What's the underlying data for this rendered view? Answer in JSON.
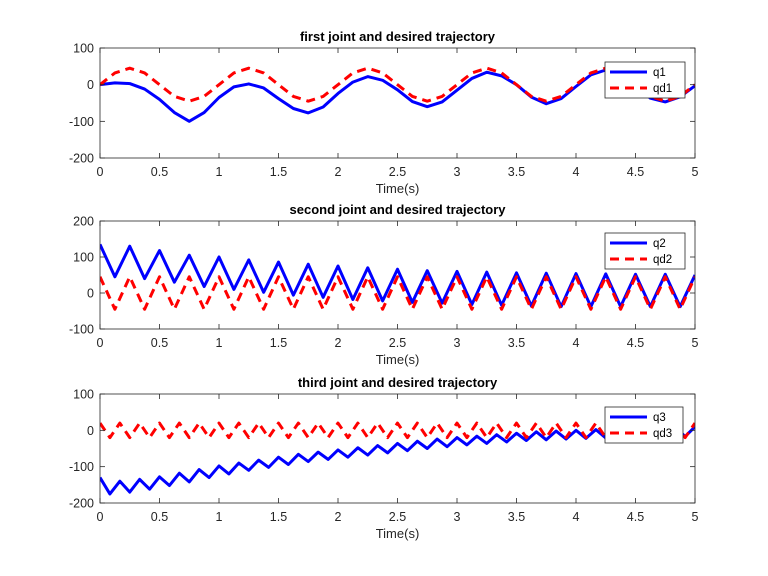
{
  "chart_data": [
    {
      "type": "line",
      "title": "first joint and desired trajectory",
      "xlabel": "Time(s)",
      "ylabel": "",
      "xlim": [
        0,
        5
      ],
      "ylim": [
        -200,
        100
      ],
      "xticks": [
        "0",
        "0.5",
        "1",
        "1.5",
        "2",
        "2.5",
        "3",
        "3.5",
        "4",
        "4.5",
        "5"
      ],
      "yticks": [
        "100",
        "0",
        "-100",
        "-200"
      ],
      "grid": false,
      "legend_position": "top-right",
      "series": [
        {
          "name": "q1",
          "color": "#0000ff",
          "style": "solid",
          "x": [
            0,
            0.125,
            0.25,
            0.375,
            0.5,
            0.625,
            0.75,
            0.875,
            1.0,
            1.125,
            1.25,
            1.375,
            1.5,
            1.625,
            1.75,
            1.875,
            2.0,
            2.125,
            2.25,
            2.375,
            2.5,
            2.625,
            2.75,
            2.875,
            3.0,
            3.125,
            3.25,
            3.375,
            3.5,
            3.625,
            3.75,
            3.875,
            4.0,
            4.125,
            4.25,
            4.375,
            4.5,
            4.625,
            4.75,
            4.875,
            5.0
          ],
          "y": [
            0,
            5,
            3,
            -12,
            -40,
            -76,
            -100,
            -76,
            -35,
            -6,
            2,
            -9,
            -38,
            -65,
            -77,
            -61,
            -24,
            7,
            22,
            12,
            -14,
            -46,
            -60,
            -47,
            -15,
            17,
            34,
            24,
            0,
            -34,
            -52,
            -38,
            -5,
            27,
            40,
            27,
            -2,
            -37,
            -47,
            -33,
            -3
          ]
        },
        {
          "name": "qd1",
          "color": "#ff0000",
          "style": "dashed",
          "x": [
            0,
            0.125,
            0.25,
            0.375,
            0.5,
            0.625,
            0.75,
            0.875,
            1.0,
            1.125,
            1.25,
            1.375,
            1.5,
            1.625,
            1.75,
            1.875,
            2.0,
            2.125,
            2.25,
            2.375,
            2.5,
            2.625,
            2.75,
            2.875,
            3.0,
            3.125,
            3.25,
            3.375,
            3.5,
            3.625,
            3.75,
            3.875,
            4.0,
            4.125,
            4.25,
            4.375,
            4.5,
            4.625,
            4.75,
            4.875,
            5.0
          ],
          "y": [
            0,
            32,
            45,
            32,
            0,
            -32,
            -45,
            -32,
            0,
            32,
            45,
            32,
            0,
            -32,
            -45,
            -32,
            0,
            32,
            45,
            32,
            0,
            -32,
            -45,
            -32,
            0,
            32,
            45,
            32,
            0,
            -32,
            -45,
            -32,
            0,
            32,
            45,
            32,
            0,
            -32,
            -45,
            -32,
            0
          ]
        }
      ]
    },
    {
      "type": "line",
      "title": "second joint and desired trajectory",
      "xlabel": "Time(s)",
      "ylabel": "",
      "xlim": [
        0,
        5
      ],
      "ylim": [
        -100,
        200
      ],
      "xticks": [
        "0",
        "0.5",
        "1",
        "1.5",
        "2",
        "2.5",
        "3",
        "3.5",
        "4",
        "4.5",
        "5"
      ],
      "yticks": [
        "200",
        "100",
        "0",
        "-100"
      ],
      "grid": false,
      "legend_position": "top-right",
      "series": [
        {
          "name": "q2",
          "color": "#0000ff",
          "style": "solid",
          "x": [
            0,
            0.125,
            0.25,
            0.375,
            0.5,
            0.625,
            0.75,
            0.875,
            1.0,
            1.125,
            1.25,
            1.375,
            1.5,
            1.625,
            1.75,
            1.875,
            2.0,
            2.125,
            2.25,
            2.375,
            2.5,
            2.625,
            2.75,
            2.875,
            3.0,
            3.125,
            3.25,
            3.375,
            3.5,
            3.625,
            3.75,
            3.875,
            4.0,
            4.125,
            4.25,
            4.375,
            4.5,
            4.625,
            4.75,
            4.875,
            5.0
          ],
          "y": [
            135,
            45,
            130,
            40,
            118,
            30,
            105,
            18,
            100,
            10,
            92,
            2,
            86,
            -6,
            80,
            -12,
            75,
            -18,
            70,
            -22,
            66,
            -26,
            62,
            -28,
            60,
            -32,
            58,
            -34,
            56,
            -36,
            55,
            -38,
            54,
            -38,
            53,
            -38,
            52,
            -38,
            52,
            -38,
            50
          ]
        },
        {
          "name": "qd2",
          "color": "#ff0000",
          "style": "dashed",
          "x": [
            0,
            0.125,
            0.25,
            0.375,
            0.5,
            0.625,
            0.75,
            0.875,
            1.0,
            1.125,
            1.25,
            1.375,
            1.5,
            1.625,
            1.75,
            1.875,
            2.0,
            2.125,
            2.25,
            2.375,
            2.5,
            2.625,
            2.75,
            2.875,
            3.0,
            3.125,
            3.25,
            3.375,
            3.5,
            3.625,
            3.75,
            3.875,
            4.0,
            4.125,
            4.25,
            4.375,
            4.5,
            4.625,
            4.75,
            4.875,
            5.0
          ],
          "y": [
            45,
            -45,
            45,
            -45,
            45,
            -45,
            45,
            -45,
            45,
            -45,
            45,
            -45,
            45,
            -45,
            45,
            -45,
            45,
            -45,
            45,
            -45,
            45,
            -45,
            45,
            -45,
            45,
            -45,
            45,
            -45,
            45,
            -45,
            45,
            -45,
            45,
            -45,
            45,
            -45,
            45,
            -45,
            45,
            -45,
            45
          ]
        }
      ]
    },
    {
      "type": "line",
      "title": "third joint and desired trajectory",
      "xlabel": "Time(s)",
      "ylabel": "",
      "xlim": [
        0,
        5
      ],
      "ylim": [
        -200,
        100
      ],
      "xticks": [
        "0",
        "0.5",
        "1",
        "1.5",
        "2",
        "2.5",
        "3",
        "3.5",
        "4",
        "4.5",
        "5"
      ],
      "yticks": [
        "100",
        "0",
        "-100",
        "-200"
      ],
      "grid": false,
      "legend_position": "top-right",
      "series": [
        {
          "name": "q3",
          "color": "#0000ff",
          "style": "solid",
          "x": [
            0,
            0.083,
            0.167,
            0.25,
            0.333,
            0.417,
            0.5,
            0.583,
            0.667,
            0.75,
            0.833,
            0.917,
            1.0,
            1.083,
            1.167,
            1.25,
            1.333,
            1.417,
            1.5,
            1.583,
            1.667,
            1.75,
            1.833,
            1.917,
            2.0,
            2.083,
            2.167,
            2.25,
            2.333,
            2.417,
            2.5,
            2.583,
            2.667,
            2.75,
            2.833,
            2.917,
            3.0,
            3.083,
            3.167,
            3.25,
            3.333,
            3.417,
            3.5,
            3.583,
            3.667,
            3.75,
            3.833,
            3.917,
            4.0,
            4.083,
            4.167,
            4.25,
            4.333,
            4.417,
            4.5,
            4.583,
            4.667,
            4.75,
            4.833,
            4.917,
            5.0
          ],
          "y": [
            -130,
            -175,
            -140,
            -170,
            -135,
            -162,
            -128,
            -152,
            -118,
            -142,
            -108,
            -130,
            -98,
            -120,
            -90,
            -110,
            -82,
            -102,
            -74,
            -94,
            -66,
            -86,
            -60,
            -80,
            -54,
            -74,
            -48,
            -68,
            -42,
            -62,
            -36,
            -56,
            -30,
            -50,
            -24,
            -45,
            -20,
            -40,
            -16,
            -36,
            -12,
            -32,
            -8,
            -28,
            -4,
            -26,
            -2,
            -24,
            0,
            -22,
            2,
            -21,
            4,
            -20,
            6,
            -19,
            8,
            -18,
            9,
            -17,
            10
          ]
        },
        {
          "name": "qd3",
          "color": "#ff0000",
          "style": "dashed",
          "x": [
            0,
            0.0417,
            0.0833,
            0.125,
            0.1667,
            0.2083,
            0.25,
            0.2917,
            0.3333,
            0.375,
            0.4167,
            0.4583,
            0.5,
            0.5417,
            0.5833,
            0.625,
            0.6667,
            0.7083,
            0.75,
            0.7917,
            0.8333,
            0.875,
            0.9167,
            0.9583,
            1.0,
            1.0417,
            1.0833,
            1.125,
            1.1667,
            1.2083,
            1.25,
            1.2917,
            1.3333,
            1.375,
            1.4167,
            1.4583,
            1.5,
            1.5417,
            1.5833,
            1.625,
            1.6667,
            1.7083,
            1.75,
            1.7917,
            1.8333,
            1.875,
            1.9167,
            1.9583,
            2.0,
            2.0417,
            2.0833,
            2.125,
            2.1667,
            2.2083,
            2.25,
            2.2917,
            2.3333,
            2.375,
            2.4167,
            2.4583,
            2.5,
            2.5417,
            2.5833,
            2.625,
            2.6667,
            2.7083,
            2.75,
            2.7917,
            2.8333,
            2.875,
            2.9167,
            2.9583,
            3.0,
            3.0417,
            3.0833,
            3.125,
            3.1667,
            3.2083,
            3.25,
            3.2917,
            3.3333,
            3.375,
            3.4167,
            3.4583,
            3.5,
            3.5417,
            3.5833,
            3.625,
            3.6667,
            3.7083,
            3.75,
            3.7917,
            3.8333,
            3.875,
            3.9167,
            3.9583,
            4.0,
            4.0417,
            4.0833,
            4.125,
            4.1667,
            4.2083,
            4.25,
            4.2917,
            4.3333,
            4.375,
            4.4167,
            4.4583,
            4.5,
            4.5417,
            4.5833,
            4.625,
            4.6667,
            4.7083,
            4.75,
            4.7917,
            4.8333,
            4.875,
            4.9167,
            4.9583,
            5.0
          ],
          "y": [
            20,
            0,
            -20,
            0,
            20,
            0,
            -20,
            0,
            20,
            0,
            -20,
            0,
            20,
            0,
            -20,
            0,
            20,
            0,
            -20,
            0,
            20,
            0,
            -20,
            0,
            20,
            0,
            -20,
            0,
            20,
            0,
            -20,
            0,
            20,
            0,
            -20,
            0,
            20,
            0,
            -20,
            0,
            20,
            0,
            -20,
            0,
            20,
            0,
            -20,
            0,
            20,
            0,
            -20,
            0,
            20,
            0,
            -20,
            0,
            20,
            0,
            -20,
            0,
            20,
            0,
            -20,
            0,
            20,
            0,
            -20,
            0,
            20,
            0,
            -20,
            0,
            20,
            0,
            -20,
            0,
            20,
            0,
            -20,
            0,
            20,
            0,
            -20,
            0,
            20,
            0,
            -20,
            0,
            20,
            0,
            -20,
            0,
            20,
            0,
            -20,
            0,
            20,
            0,
            -20,
            0,
            20,
            0,
            -20,
            0,
            20,
            0,
            -20,
            0,
            20,
            0,
            -20,
            0,
            20,
            0,
            -20,
            0,
            20,
            0,
            -20,
            0,
            20
          ]
        }
      ]
    }
  ]
}
